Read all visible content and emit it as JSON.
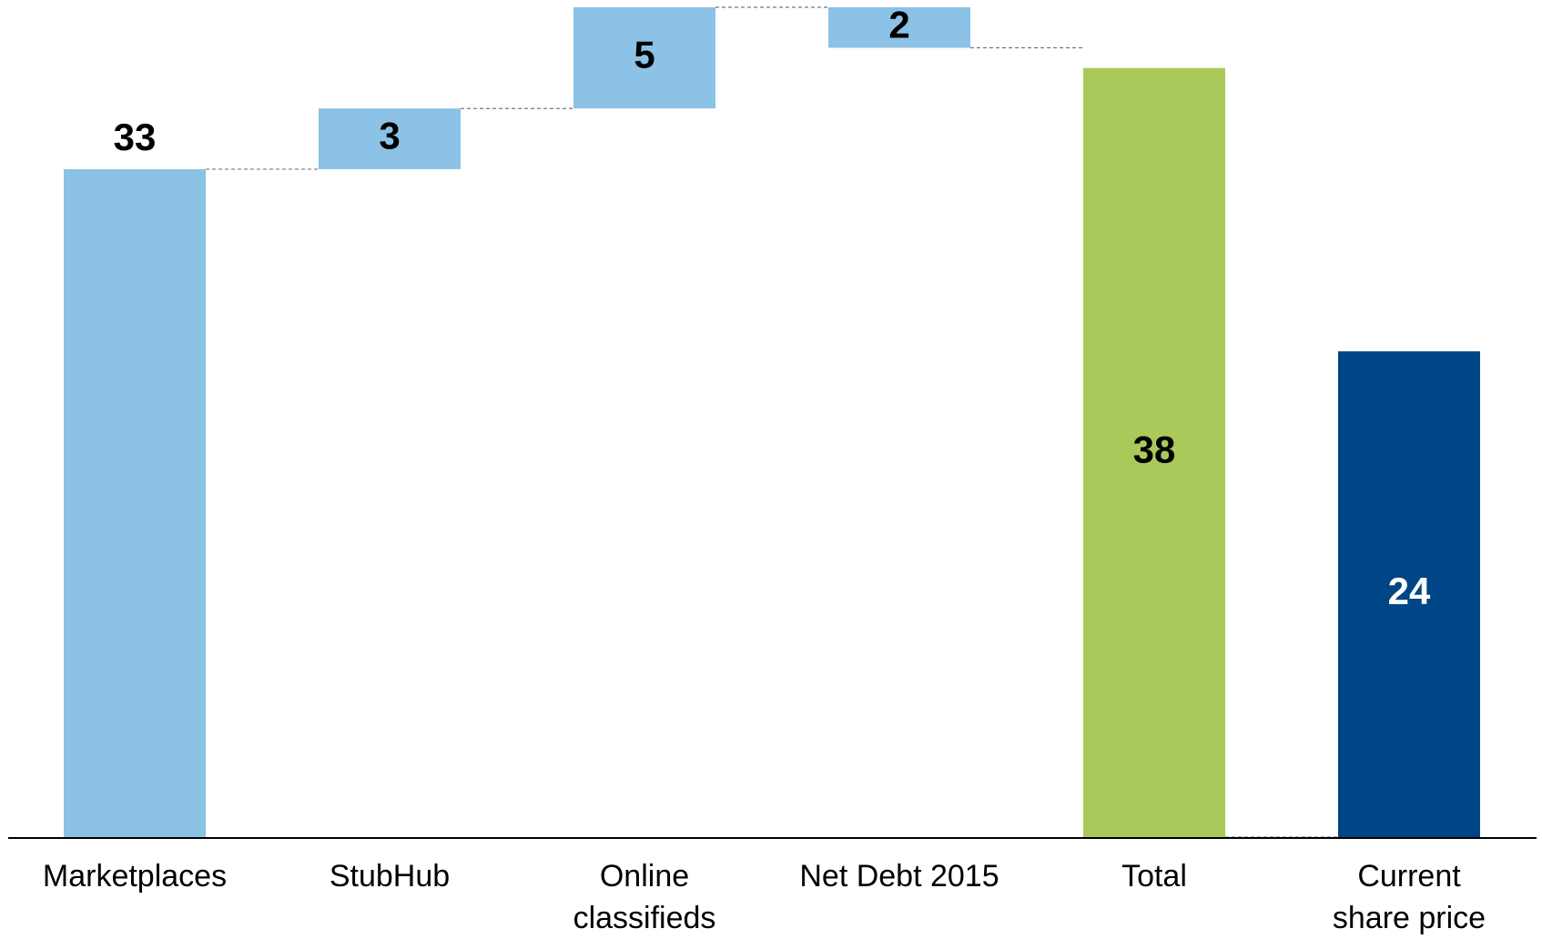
{
  "chart_data": {
    "type": "waterfall",
    "categories": [
      "Marketplaces",
      "StubHub",
      "Online\nclassifieds",
      "Net Debt 2015",
      "Total",
      "Current\nshare price"
    ],
    "values": [
      33,
      3,
      5,
      -2,
      38,
      24
    ],
    "value_labels": [
      "33",
      "3",
      "5",
      "2",
      "38",
      "24"
    ],
    "measure": [
      "absolute",
      "relative",
      "relative",
      "relative",
      "absolute",
      "absolute"
    ],
    "colors": [
      "#8cc2e6",
      "#8cc2e6",
      "#8cc2e6",
      "#8cc2e6",
      "#abc95a",
      "#004586"
    ]
  }
}
